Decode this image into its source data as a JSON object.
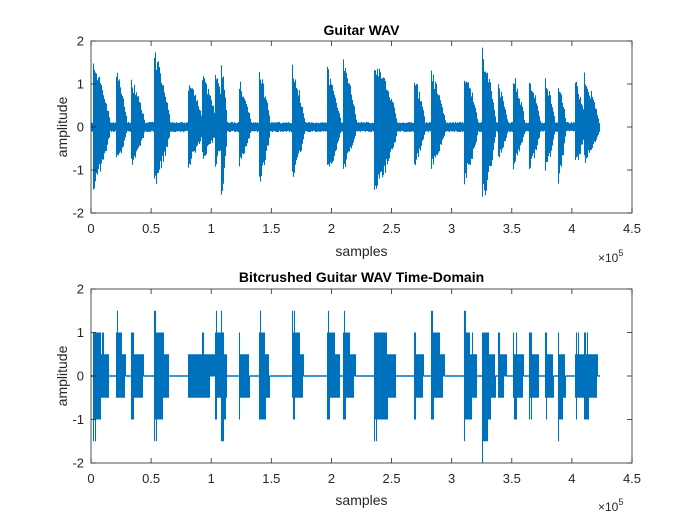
{
  "chart_data": [
    {
      "type": "line",
      "title": "Guitar WAV",
      "xlabel": "samples",
      "ylabel": "amplitude",
      "xlim": [
        0,
        450000
      ],
      "ylim": [
        -2,
        2
      ],
      "x_ticks": [
        0,
        50000,
        100000,
        150000,
        200000,
        250000,
        300000,
        350000,
        400000,
        450000
      ],
      "x_tick_labels": [
        "0",
        "0.5",
        "1",
        "1.5",
        "2",
        "2.5",
        "3",
        "3.5",
        "4",
        "4.5"
      ],
      "y_ticks": [
        -2,
        -1,
        0,
        1,
        2
      ],
      "y_tick_labels": [
        "-2",
        "-1",
        "0",
        "1",
        "2"
      ],
      "x_exponent_label": "×10",
      "x_exponent_power": "5",
      "series_color": "#0072BD",
      "grid": false,
      "legend": "none",
      "noise_floor": 0.12,
      "data_end": 423000,
      "bursts": [
        {
          "start": 1000,
          "peak_pos": 1.7,
          "peak_neg": -1.6,
          "decay_len": 15000
        },
        {
          "start": 20000,
          "peak_pos": 1.5,
          "peak_neg": -1.0,
          "decay_len": 10000
        },
        {
          "start": 33000,
          "peak_pos": 1.2,
          "peak_neg": -1.0,
          "decay_len": 12000
        },
        {
          "start": 52000,
          "peak_pos": 1.9,
          "peak_neg": -1.5,
          "decay_len": 14000
        },
        {
          "start": 80000,
          "peak_pos": 1.2,
          "peak_neg": -1.0,
          "decay_len": 14000
        },
        {
          "start": 92000,
          "peak_pos": 1.3,
          "peak_neg": -0.8,
          "decay_len": 13000
        },
        {
          "start": 103000,
          "peak_pos": 1.6,
          "peak_neg": -1.0,
          "decay_len": 8000
        },
        {
          "start": 108000,
          "peak_pos": 1.7,
          "peak_neg": -2.0,
          "decay_len": 5000
        },
        {
          "start": 123000,
          "peak_pos": 1.2,
          "peak_neg": -1.0,
          "decay_len": 10000
        },
        {
          "start": 139000,
          "peak_pos": 1.5,
          "peak_neg": -1.5,
          "decay_len": 10000
        },
        {
          "start": 167000,
          "peak_pos": 1.5,
          "peak_neg": -1.3,
          "decay_len": 11000
        },
        {
          "start": 196000,
          "peak_pos": 1.5,
          "peak_neg": -1.2,
          "decay_len": 12000
        },
        {
          "start": 209000,
          "peak_pos": 1.7,
          "peak_neg": -1.1,
          "decay_len": 12000
        },
        {
          "start": 235000,
          "peak_pos": 1.8,
          "peak_neg": -1.7,
          "decay_len": 20000
        },
        {
          "start": 268000,
          "peak_pos": 1.3,
          "peak_neg": -1.0,
          "decay_len": 10000
        },
        {
          "start": 282000,
          "peak_pos": 1.5,
          "peak_neg": -1.1,
          "decay_len": 13000
        },
        {
          "start": 310000,
          "peak_pos": 1.5,
          "peak_neg": -1.4,
          "decay_len": 12000
        },
        {
          "start": 325000,
          "peak_pos": 1.9,
          "peak_neg": -1.9,
          "decay_len": 12000
        },
        {
          "start": 338000,
          "peak_pos": 1.1,
          "peak_neg": -0.8,
          "decay_len": 9000
        },
        {
          "start": 351000,
          "peak_pos": 1.3,
          "peak_neg": -1.0,
          "decay_len": 10000
        },
        {
          "start": 364000,
          "peak_pos": 1.3,
          "peak_neg": -1.1,
          "decay_len": 10000
        },
        {
          "start": 377000,
          "peak_pos": 1.3,
          "peak_neg": -1.2,
          "decay_len": 9000
        },
        {
          "start": 388000,
          "peak_pos": 1.2,
          "peak_neg": -1.4,
          "decay_len": 7000
        },
        {
          "start": 402000,
          "peak_pos": 1.2,
          "peak_neg": -1.0,
          "decay_len": 10000
        },
        {
          "start": 410000,
          "peak_pos": 1.3,
          "peak_neg": -0.9,
          "decay_len": 13000
        }
      ]
    },
    {
      "type": "line",
      "title": "Bitcrushed Guitar WAV Time-Domain",
      "xlabel": "samples",
      "ylabel": "amplitude",
      "xlim": [
        0,
        450000
      ],
      "ylim": [
        -2,
        2
      ],
      "x_ticks": [
        0,
        50000,
        100000,
        150000,
        200000,
        250000,
        300000,
        350000,
        400000,
        450000
      ],
      "x_tick_labels": [
        "0",
        "0.5",
        "1",
        "1.5",
        "2",
        "2.5",
        "3",
        "3.5",
        "4",
        "4.5"
      ],
      "y_ticks": [
        -2,
        -1,
        0,
        1,
        2
      ],
      "y_tick_labels": [
        "-2",
        "-1",
        "0",
        "1",
        "2"
      ],
      "x_exponent_label": "×10",
      "x_exponent_power": "5",
      "series_color": "#0072BD",
      "grid": false,
      "legend": "none",
      "quantization_levels": [
        -2,
        -1.5,
        -1,
        -0.5,
        0,
        0.5,
        1,
        1.5,
        2
      ],
      "data_end": 423000,
      "bursts": [
        {
          "start": 1000,
          "peak_pos": 1.5,
          "peak_neg": -1.5,
          "decay_len": 15000
        },
        {
          "start": 20000,
          "peak_pos": 1.5,
          "peak_neg": -1.0,
          "decay_len": 10000
        },
        {
          "start": 33000,
          "peak_pos": 1.0,
          "peak_neg": -1.0,
          "decay_len": 12000
        },
        {
          "start": 52000,
          "peak_pos": 1.5,
          "peak_neg": -1.5,
          "decay_len": 14000
        },
        {
          "start": 80000,
          "peak_pos": 1.0,
          "peak_neg": -1.0,
          "decay_len": 14000
        },
        {
          "start": 92000,
          "peak_pos": 1.0,
          "peak_neg": -0.5,
          "decay_len": 13000
        },
        {
          "start": 103000,
          "peak_pos": 1.5,
          "peak_neg": -1.0,
          "decay_len": 8000
        },
        {
          "start": 108000,
          "peak_pos": 1.5,
          "peak_neg": -2.0,
          "decay_len": 5000
        },
        {
          "start": 123000,
          "peak_pos": 1.0,
          "peak_neg": -1.0,
          "decay_len": 10000
        },
        {
          "start": 139000,
          "peak_pos": 1.5,
          "peak_neg": -1.5,
          "decay_len": 10000
        },
        {
          "start": 167000,
          "peak_pos": 1.5,
          "peak_neg": -1.0,
          "decay_len": 11000
        },
        {
          "start": 196000,
          "peak_pos": 1.5,
          "peak_neg": -1.0,
          "decay_len": 12000
        },
        {
          "start": 209000,
          "peak_pos": 1.5,
          "peak_neg": -1.0,
          "decay_len": 12000
        },
        {
          "start": 235000,
          "peak_pos": 1.5,
          "peak_neg": -1.5,
          "decay_len": 20000
        },
        {
          "start": 268000,
          "peak_pos": 1.0,
          "peak_neg": -1.0,
          "decay_len": 10000
        },
        {
          "start": 282000,
          "peak_pos": 1.5,
          "peak_neg": -1.0,
          "decay_len": 13000
        },
        {
          "start": 310000,
          "peak_pos": 1.5,
          "peak_neg": -1.5,
          "decay_len": 12000
        },
        {
          "start": 325000,
          "peak_pos": 1.5,
          "peak_neg": -2.0,
          "decay_len": 12000
        },
        {
          "start": 338000,
          "peak_pos": 1.0,
          "peak_neg": -0.5,
          "decay_len": 9000
        },
        {
          "start": 351000,
          "peak_pos": 1.0,
          "peak_neg": -1.0,
          "decay_len": 10000
        },
        {
          "start": 364000,
          "peak_pos": 1.0,
          "peak_neg": -1.0,
          "decay_len": 10000
        },
        {
          "start": 377000,
          "peak_pos": 1.0,
          "peak_neg": -1.0,
          "decay_len": 9000
        },
        {
          "start": 388000,
          "peak_pos": 1.0,
          "peak_neg": -1.5,
          "decay_len": 7000
        },
        {
          "start": 402000,
          "peak_pos": 1.0,
          "peak_neg": -1.0,
          "decay_len": 10000
        },
        {
          "start": 410000,
          "peak_pos": 1.0,
          "peak_neg": -1.0,
          "decay_len": 13000
        }
      ]
    }
  ]
}
